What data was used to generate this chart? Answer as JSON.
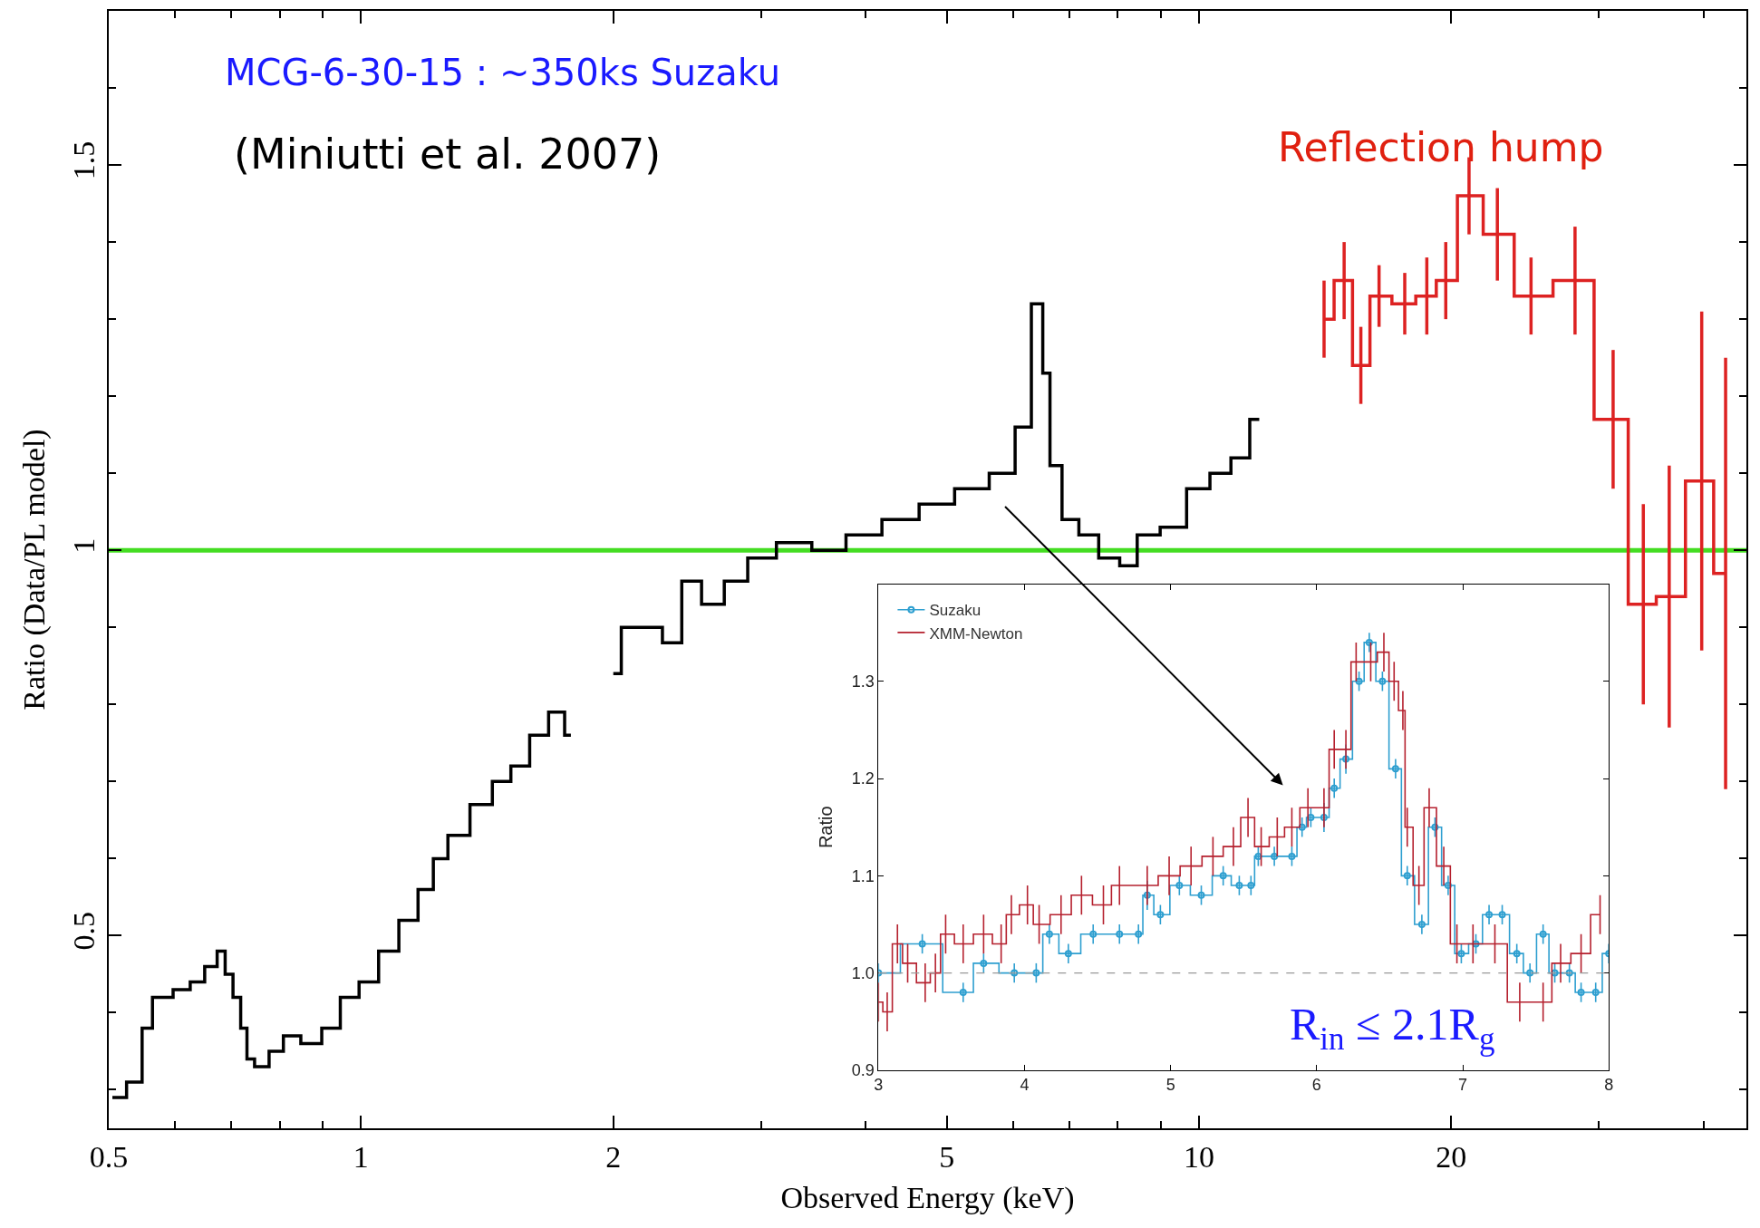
{
  "chart_data": [
    {
      "type": "step",
      "xlabel": "Observed Energy (keV)",
      "ylabel": "Ratio (Data/PL model)",
      "log": "x",
      "grid": false,
      "legend": false,
      "xlim": [
        0.5,
        45
      ],
      "ylim": [
        0.25,
        1.7
      ],
      "xticks": [
        0.5,
        {
          "value": 0.6,
          "label": null
        },
        {
          "value": 0.7,
          "label": null
        },
        {
          "value": 0.8,
          "label": null
        },
        {
          "value": 0.9,
          "label": null
        },
        1,
        2,
        {
          "value": 3,
          "label": null
        },
        {
          "value": 4,
          "label": null
        },
        5,
        {
          "value": 6,
          "label": null
        },
        {
          "value": 7,
          "label": null
        },
        {
          "value": 8,
          "label": null
        },
        {
          "value": 9,
          "label": null
        },
        10,
        20,
        {
          "value": 30,
          "label": null
        },
        {
          "value": 40,
          "label": null
        }
      ],
      "yticks": [
        {
          "value": 0.3,
          "label": null
        },
        {
          "value": 0.4,
          "label": null
        },
        0.5,
        {
          "value": 0.6,
          "label": null
        },
        {
          "value": 0.7,
          "label": null
        },
        {
          "value": 0.8,
          "label": null
        },
        {
          "value": 0.9,
          "label": null
        },
        1,
        {
          "value": 1.1,
          "label": null
        },
        {
          "value": 1.2,
          "label": null
        },
        {
          "value": 1.3,
          "label": null
        },
        {
          "value": 1.4,
          "label": null
        },
        1.5,
        {
          "value": 1.6,
          "label": null
        }
      ],
      "series": [
        {
          "color": "#000000",
          "x": [
            0.505,
            0.546,
            0.55,
            0.578,
            0.616,
            0.635,
            0.667,
            0.68,
            0.697,
            0.71,
            0.727,
            0.735,
            0.758,
            0.796,
            0.82,
            0.876,
            0.92,
            0.97,
            1.02,
            1.08,
            1.14,
            1.2,
            1.24,
            1.3,
            1.4,
            1.47,
            1.55,
            1.63,
            1.72,
            1.78,
            null,
            2.0,
            2.09,
            2.23,
            2.35,
            2.48,
            2.62,
            2.81,
            2.98,
            3.29,
            3.62,
            3.97,
            4.41,
            4.87,
            5.36,
            5.89,
            6.18,
            6.44,
            6.58,
            6.7,
            7.03,
            7.35,
            7.84,
            8.25,
            8.63,
            9.36,
            9.98,
            10.64,
            11.2,
            11.8
          ],
          "values": [
            0.29,
            0.31,
            0.38,
            0.42,
            0.43,
            0.44,
            0.46,
            0.48,
            0.45,
            0.42,
            0.38,
            0.34,
            0.33,
            0.35,
            0.37,
            0.36,
            0.38,
            0.42,
            0.44,
            0.48,
            0.52,
            0.56,
            0.6,
            0.63,
            0.67,
            0.7,
            0.72,
            0.76,
            0.79,
            0.76,
            null,
            0.84,
            0.9,
            0.9,
            0.88,
            0.96,
            0.93,
            0.96,
            0.99,
            1.01,
            1.0,
            1.02,
            1.04,
            1.06,
            1.08,
            1.1,
            1.16,
            1.32,
            1.23,
            1.11,
            1.04,
            1.02,
            0.99,
            0.98,
            1.02,
            1.03,
            1.08,
            1.1,
            1.12,
            1.17
          ]
        },
        {
          "color": "#dd2222",
          "x": [
            14.1,
            14.9,
            15.6,
            16.4,
            17.6,
            18.7,
            19.7,
            21.0,
            22.7,
            24.9,
            28.1,
            31.2,
            33.9,
            36.4,
            39.8,
            42.5
          ],
          "values": [
            1.3,
            1.35,
            1.24,
            1.33,
            1.32,
            1.33,
            1.35,
            1.46,
            1.41,
            1.33,
            1.35,
            1.17,
            0.93,
            0.94,
            1.09,
            0.97
          ],
          "errors": [
            0.05,
            0.05,
            0.05,
            0.04,
            0.04,
            0.05,
            0.05,
            0.05,
            0.06,
            0.05,
            0.07,
            0.09,
            0.13,
            0.17,
            0.22,
            0.28
          ]
        }
      ],
      "ref_lines": [
        {
          "axis": "y",
          "value": 1,
          "color": "#44dd22",
          "line_style": "solid"
        }
      ],
      "annotations": [
        "MCG-6-30-15 : ~350ks Suzaku",
        "(Miniutti et al. 2007)",
        "Reflection hump"
      ]
    },
    {
      "type": "step",
      "ylabel": "Ratio",
      "grid": false,
      "legend": "top left",
      "xlim": [
        3,
        8
      ],
      "ylim": [
        0.9,
        1.4
      ],
      "xticks": [
        3,
        4,
        5,
        6,
        7,
        8
      ],
      "yticks": [
        0.9,
        {
          "value": 1,
          "label": "1.0"
        },
        1.1,
        1.2,
        1.3
      ],
      "series": [
        {
          "name": "Suzaku",
          "color": "#2e9fd0",
          "marker": "circle",
          "x": [
            3.0,
            3.3,
            3.58,
            3.72,
            3.93,
            4.08,
            4.17,
            4.3,
            4.47,
            4.65,
            4.78,
            4.84,
            4.93,
            5.06,
            5.21,
            5.36,
            5.47,
            5.55,
            5.6,
            5.71,
            5.83,
            5.9,
            5.96,
            6.05,
            6.12,
            6.2,
            6.29,
            6.36,
            6.45,
            6.54,
            6.62,
            6.72,
            6.81,
            6.9,
            6.99,
            7.09,
            7.18,
            7.27,
            7.37,
            7.46,
            7.55,
            7.63,
            7.73,
            7.81,
            7.91,
            8.0
          ],
          "values": [
            1.0,
            1.03,
            0.98,
            1.01,
            1.0,
            1.0,
            1.04,
            1.02,
            1.04,
            1.04,
            1.04,
            1.08,
            1.06,
            1.09,
            1.08,
            1.1,
            1.09,
            1.09,
            1.12,
            1.12,
            1.12,
            1.15,
            1.16,
            1.16,
            1.19,
            1.22,
            1.3,
            1.34,
            1.3,
            1.21,
            1.1,
            1.05,
            1.15,
            1.09,
            1.02,
            1.03,
            1.06,
            1.06,
            1.02,
            1.0,
            1.04,
            1.0,
            1.0,
            0.98,
            0.98,
            1.02
          ],
          "errors": [
            0.01,
            0.01,
            0.01,
            0.01,
            0.01,
            0.01,
            0.01,
            0.01,
            0.01,
            0.01,
            0.01,
            0.015,
            0.01,
            0.01,
            0.01,
            0.01,
            0.01,
            0.01,
            0.01,
            0.01,
            0.01,
            0.01,
            0.01,
            0.015,
            0.01,
            0.015,
            0.01,
            0.01,
            0.01,
            0.01,
            0.01,
            0.01,
            0.01,
            0.01,
            0.01,
            0.01,
            0.01,
            0.01,
            0.01,
            0.01,
            0.01,
            0.01,
            0.01,
            0.01,
            0.01,
            0.01
          ]
        },
        {
          "name": "XMM-Newton",
          "color": "#b5202e",
          "x": [
            3.0,
            3.06,
            3.13,
            3.2,
            3.32,
            3.39,
            3.46,
            3.58,
            3.72,
            3.84,
            3.91,
            4.02,
            4.1,
            4.25,
            4.39,
            4.54,
            4.65,
            4.84,
            4.99,
            5.14,
            5.29,
            5.43,
            5.53,
            5.62,
            5.73,
            5.83,
            5.94,
            6.05,
            6.12,
            6.2,
            6.27,
            6.37,
            6.46,
            6.53,
            6.59,
            6.62,
            6.7,
            6.77,
            6.87,
            6.96,
            7.07,
            7.22,
            7.39,
            7.55,
            7.67,
            7.81,
            7.94
          ],
          "values": [
            0.97,
            0.96,
            1.03,
            1.01,
            0.99,
            1.0,
            1.04,
            1.03,
            1.04,
            1.03,
            1.06,
            1.07,
            1.05,
            1.06,
            1.08,
            1.07,
            1.09,
            1.09,
            1.1,
            1.11,
            1.12,
            1.13,
            1.16,
            1.13,
            1.14,
            1.15,
            1.17,
            1.17,
            1.23,
            1.23,
            1.32,
            1.32,
            1.33,
            1.3,
            1.27,
            1.15,
            1.09,
            1.17,
            1.11,
            1.03,
            1.03,
            1.03,
            0.97,
            0.97,
            1.01,
            1.02,
            1.06
          ],
          "errors": [
            0.02,
            0.02,
            0.02,
            0.02,
            0.02,
            0.02,
            0.02,
            0.02,
            0.02,
            0.02,
            0.02,
            0.02,
            0.02,
            0.02,
            0.02,
            0.02,
            0.02,
            0.02,
            0.02,
            0.02,
            0.02,
            0.02,
            0.02,
            0.02,
            0.02,
            0.02,
            0.02,
            0.02,
            0.02,
            0.02,
            0.02,
            0.02,
            0.02,
            0.02,
            0.02,
            0.02,
            0.02,
            0.02,
            0.02,
            0.02,
            0.02,
            0.02,
            0.02,
            0.02,
            0.02,
            0.02,
            0.02
          ]
        }
      ],
      "ref_lines": [
        {
          "axis": "y",
          "value": 1,
          "color": "#999999",
          "line_style": "dashed"
        }
      ],
      "annotations": [
        "R$_{in}$ ≤ 2.1R$_{g}$"
      ]
    }
  ]
}
